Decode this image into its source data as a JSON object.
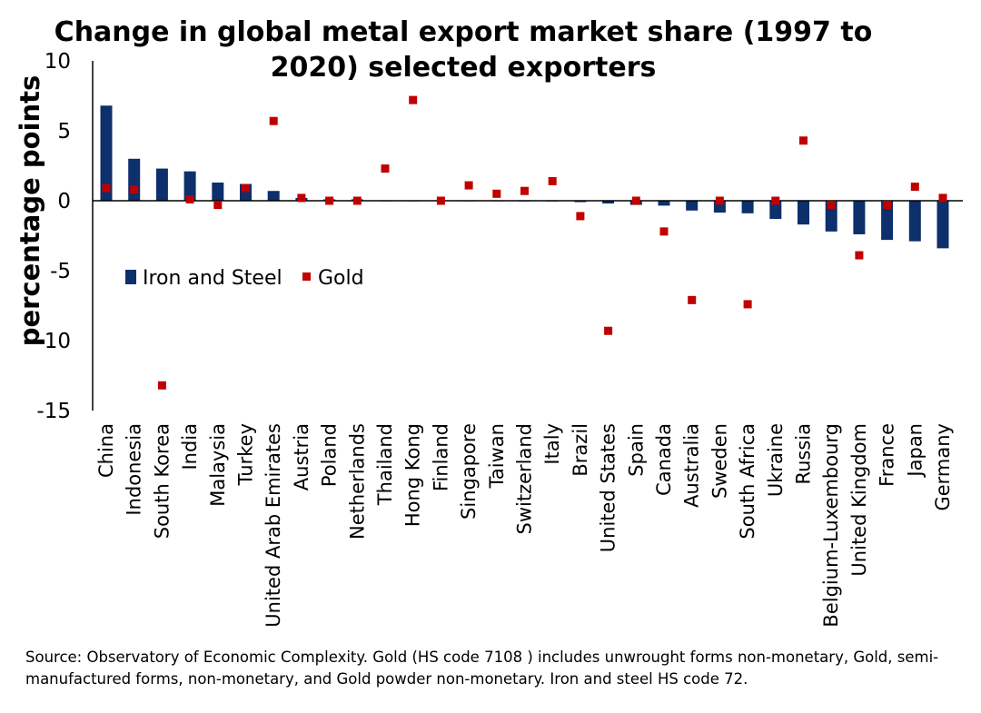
{
  "chart_data": {
    "type": "bar",
    "title_lines": [
      "Change in global metal export market share (1997 to",
      "2020) selected exporters"
    ],
    "ylabel": "percentage points",
    "ylim": [
      -15,
      10
    ],
    "yticks": [
      10,
      5,
      0,
      -5,
      -10,
      -15
    ],
    "grid": false,
    "legend": "left-middle",
    "categories": [
      "China",
      "Indonesia",
      "South Korea",
      "India",
      "Malaysia",
      "Turkey",
      "United Arab Emirates",
      "Austria",
      "Poland",
      "Netherlands",
      "Thailand",
      "Hong Kong",
      "Finland",
      "Singapore",
      "Taiwan",
      "Switzerland",
      "Italy",
      "Brazil",
      "United States",
      "Spain",
      "Canada",
      "Australia",
      "Sweden",
      "South Africa",
      "Ukraine",
      "Russia",
      "Belgium-Luxembourg",
      "United Kingdom",
      "France",
      "Japan",
      "Germany"
    ],
    "series": [
      {
        "name": "Iron and Steel",
        "kind": "bar",
        "color": "#0d2f6b",
        "values": [
          6.8,
          3.0,
          2.3,
          2.1,
          1.3,
          1.2,
          0.7,
          0.2,
          0.1,
          0.1,
          0.0,
          0.0,
          0.0,
          0.0,
          0.0,
          -0.05,
          -0.05,
          -0.1,
          -0.2,
          -0.3,
          -0.35,
          -0.7,
          -0.85,
          -0.9,
          -1.3,
          -1.7,
          -2.2,
          -2.4,
          -2.8,
          -2.9,
          -3.4
        ]
      },
      {
        "name": "Gold",
        "kind": "scatter",
        "color": "#c00000",
        "values": [
          0.9,
          0.8,
          -13.2,
          0.1,
          -0.3,
          0.9,
          5.7,
          0.2,
          0.0,
          0.0,
          2.3,
          7.2,
          0.0,
          1.1,
          0.5,
          0.7,
          1.4,
          -1.1,
          -9.3,
          0.0,
          -2.2,
          -7.1,
          0.0,
          -7.4,
          0.0,
          4.3,
          -0.3,
          -3.9,
          -0.3,
          1.0,
          0.2
        ]
      }
    ]
  },
  "source_text": "Source: Observatory of Economic Complexity. Gold (HS code 7108 ) includes unwrought forms non-monetary, Gold, semi-manufactured forms, non-monetary, and Gold powder non-monetary. Iron and steel HS code 72."
}
